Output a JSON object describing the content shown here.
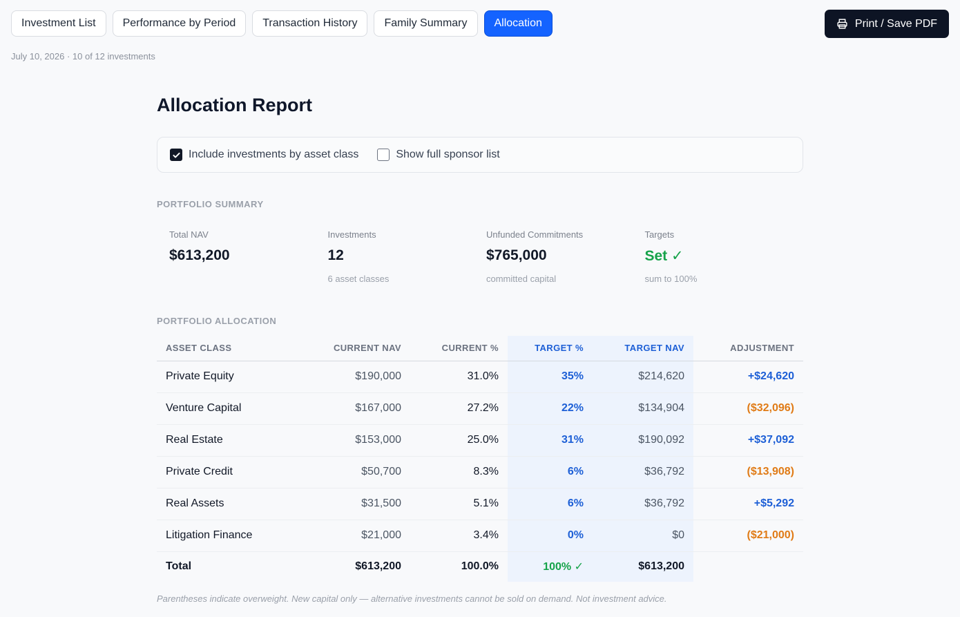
{
  "tabs": [
    {
      "label": "Investment List"
    },
    {
      "label": "Performance by Period"
    },
    {
      "label": "Transaction History"
    },
    {
      "label": "Family Summary"
    },
    {
      "label": "Allocation"
    }
  ],
  "active_tab": "Allocation",
  "print_button": {
    "label": "Print / Save PDF",
    "icon": "printer-icon"
  },
  "meta": "July 10, 2026 · 10 of 12 investments",
  "report_title": "Allocation Report",
  "options": [
    {
      "label": "Include investments by asset class",
      "checked": true
    },
    {
      "label": "Show full sponsor list",
      "checked": false
    }
  ],
  "portfolio_summary": {
    "label": "PORTFOLIO SUMMARY",
    "stats": [
      {
        "label": "Total NAV",
        "value": "$613,200",
        "sub": ""
      },
      {
        "label": "Investments",
        "value": "12",
        "sub": "6 asset classes"
      },
      {
        "label": "Unfunded Commitments",
        "value": "$765,000",
        "sub": "committed capital"
      },
      {
        "label": "Targets",
        "value": "Set ✓",
        "sub": "sum to 100%"
      }
    ]
  },
  "allocation": {
    "label": "PORTFOLIO ALLOCATION",
    "headers": [
      "ASSET CLASS",
      "CURRENT NAV",
      "CURRENT %",
      "TARGET %",
      "TARGET NAV",
      "ADJUSTMENT"
    ],
    "rows": [
      {
        "asset_class": "Private Equity",
        "current_nav": "$190,000",
        "current_pct": "31.0%",
        "target_pct": "35%",
        "target_nav": "$214,620",
        "adjustment": "+$24,620",
        "direction": "pos"
      },
      {
        "asset_class": "Venture Capital",
        "current_nav": "$167,000",
        "current_pct": "27.2%",
        "target_pct": "22%",
        "target_nav": "$134,904",
        "adjustment": "($32,096)",
        "direction": "neg"
      },
      {
        "asset_class": "Real Estate",
        "current_nav": "$153,000",
        "current_pct": "25.0%",
        "target_pct": "31%",
        "target_nav": "$190,092",
        "adjustment": "+$37,092",
        "direction": "pos"
      },
      {
        "asset_class": "Private Credit",
        "current_nav": "$50,700",
        "current_pct": "8.3%",
        "target_pct": "6%",
        "target_nav": "$36,792",
        "adjustment": "($13,908)",
        "direction": "neg"
      },
      {
        "asset_class": "Real Assets",
        "current_nav": "$31,500",
        "current_pct": "5.1%",
        "target_pct": "6%",
        "target_nav": "$36,792",
        "adjustment": "+$5,292",
        "direction": "pos"
      },
      {
        "asset_class": "Litigation Finance",
        "current_nav": "$21,000",
        "current_pct": "3.4%",
        "target_pct": "0%",
        "target_nav": "$0",
        "adjustment": "($21,000)",
        "direction": "neg"
      }
    ],
    "total": {
      "asset_class": "Total",
      "current_nav": "$613,200",
      "current_pct": "100.0%",
      "target_pct": "100% ✓",
      "target_nav": "$613,200",
      "adjustment": ""
    }
  },
  "footnote": "Parentheses indicate overweight. New capital only — alternative investments cannot be sold on demand. Not investment advice.",
  "colors": {
    "accent": "#1463ff",
    "positive": "#1d5fd6",
    "negative": "#e07b16",
    "success": "#16a34a",
    "dark": "#0d1424"
  }
}
